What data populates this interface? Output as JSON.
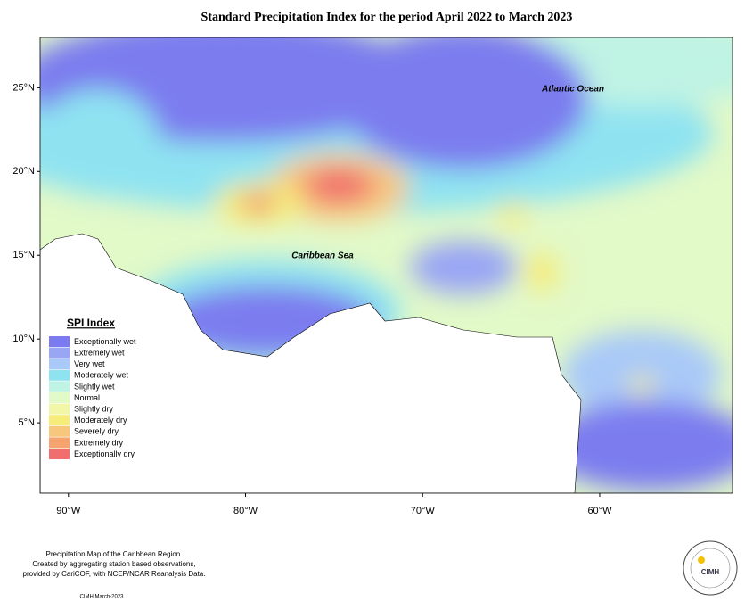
{
  "map": {
    "title": "Standard Precipitation Index for the period April 2022 to March 2023",
    "xlim": [
      -91.6,
      -52.5
    ],
    "ylim": [
      0.8,
      28
    ],
    "xticks": [
      {
        "value": -90,
        "label": "90°W"
      },
      {
        "value": -80,
        "label": "80°W"
      },
      {
        "value": -70,
        "label": "70°W"
      },
      {
        "value": -60,
        "label": "60°W"
      }
    ],
    "yticks": [
      {
        "value": 25,
        "label": "25°N"
      },
      {
        "value": 20,
        "label": "20°N"
      },
      {
        "value": 15,
        "label": "15°N"
      },
      {
        "value": 10,
        "label": "10°N"
      },
      {
        "value": 5,
        "label": "5°N"
      }
    ],
    "labels": [
      "Atlantic Ocean",
      "Caribbean Sea"
    ],
    "legend": {
      "title": "SPI Index",
      "items": [
        {
          "name": "Exceptionally wet",
          "color": "#7b7bef"
        },
        {
          "name": "Extremely wet",
          "color": "#99a6f4"
        },
        {
          "name": "Very wet",
          "color": "#a9c9f8"
        },
        {
          "name": "Moderately wet",
          "color": "#8fe3f1"
        },
        {
          "name": "Slightly wet",
          "color": "#bff3e4"
        },
        {
          "name": "Normal",
          "color": "#e2f9c8"
        },
        {
          "name": "Slightly dry",
          "color": "#f1f7a6"
        },
        {
          "name": "Moderately dry",
          "color": "#f6ec7a"
        },
        {
          "name": "Severely dry",
          "color": "#f8c77e"
        },
        {
          "name": "Extremely dry",
          "color": "#f5a46f"
        },
        {
          "name": "Exceptionally dry",
          "color": "#f06e6e"
        }
      ]
    },
    "footer": [
      "Precipitation Map of the Caribbean Region.",
      "Created by aggregating station based observations,",
      "provided by CariCOF, with NCEP/NCAR Reanalysis Data."
    ],
    "credit": "CIMH March-2023",
    "logo": "CIMH"
  }
}
